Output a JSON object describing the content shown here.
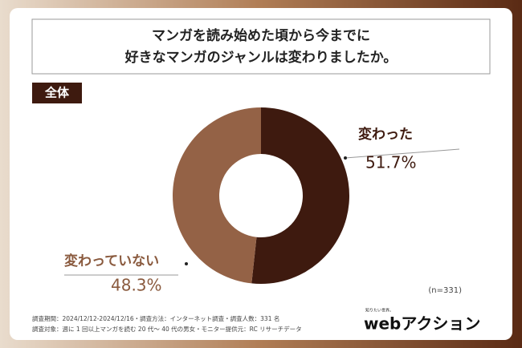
{
  "chart_data": {
    "type": "donut",
    "title": [
      "マンガを読み始めた頃から今までに",
      "好きなマンガのジャンルは変わりましたか。"
    ],
    "group_label": "全体",
    "categories": [
      "変わった",
      "変わっていない"
    ],
    "values": [
      51.7,
      48.3
    ],
    "value_labels": [
      "51.7%",
      "48.3%"
    ],
    "colors": [
      "#3e1a0f",
      "#946246"
    ],
    "sample_size": "(n=331)",
    "footnotes": [
      "調査期間：2024/12/12-2024/12/16・調査方法：インターネット調査・調査人数：331 名",
      "調査対象：週に 1 回以上マンガを読む 20 代～ 40 代の男女・モニター提供元：RC リサーチデータ"
    ],
    "logo_tagline": "知りたい世界。",
    "logo": "webアクション"
  }
}
